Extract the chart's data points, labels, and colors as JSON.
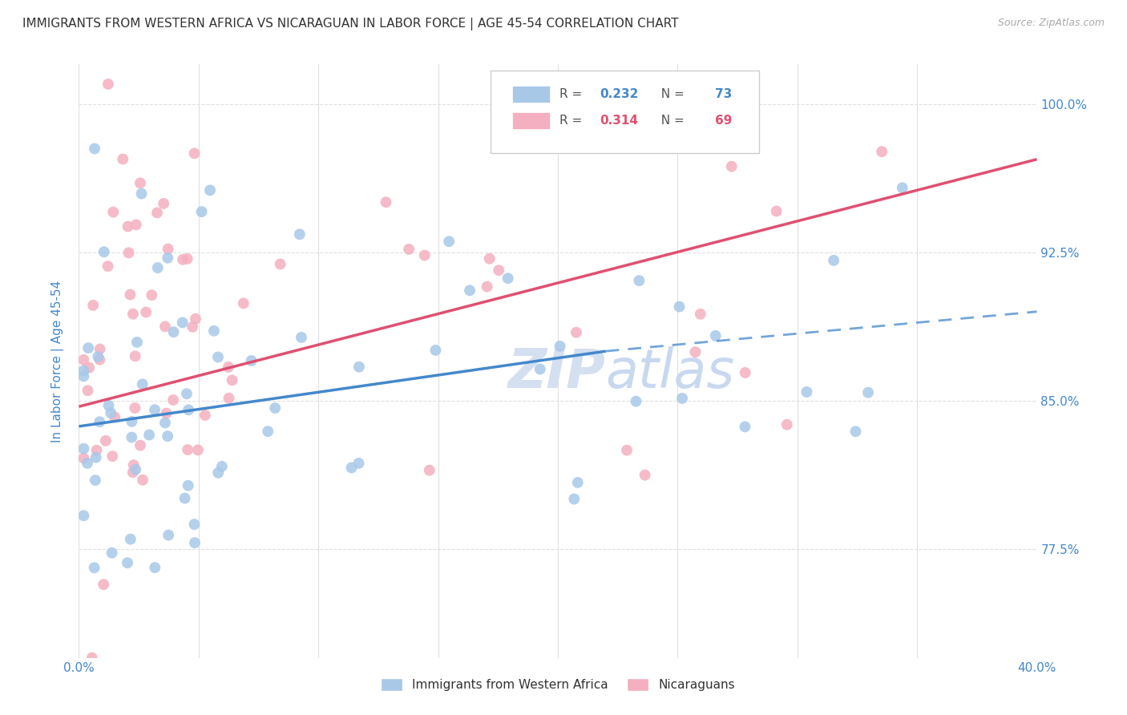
{
  "title": "IMMIGRANTS FROM WESTERN AFRICA VS NICARAGUAN IN LABOR FORCE | AGE 45-54 CORRELATION CHART",
  "source": "Source: ZipAtlas.com",
  "ylabel": "In Labor Force | Age 45-54",
  "y_tick_labels": [
    "100.0%",
    "92.5%",
    "85.0%",
    "77.5%"
  ],
  "y_tick_values": [
    1.0,
    0.925,
    0.85,
    0.775
  ],
  "xmin": 0.0,
  "xmax": 0.4,
  "ymin": 0.72,
  "ymax": 1.02,
  "blue_color": "#a8c8e8",
  "pink_color": "#f4b0c0",
  "blue_line_color": "#4488cc",
  "pink_line_color": "#e05070",
  "blue_R": 0.232,
  "blue_N": 73,
  "pink_R": 0.314,
  "pink_N": 69,
  "title_color": "#333333",
  "axis_label_color": "#4488cc",
  "watermark_color": "#d4dff0",
  "grid_color": "#e0e0e0",
  "background_color": "#ffffff",
  "blue_line_solid_xmax": 0.22,
  "legend_R_color": "#4488cc",
  "legend_N_color": "#4488cc"
}
